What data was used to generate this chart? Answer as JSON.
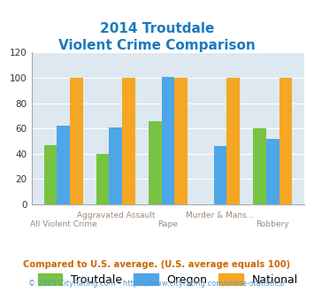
{
  "title_line1": "2014 Troutdale",
  "title_line2": "Violent Crime Comparison",
  "categories": [
    "All Violent Crime",
    "Aggravated Assault",
    "Rape",
    "Murder & Mans...",
    "Robbery"
  ],
  "troutdale": [
    47,
    40,
    66,
    0,
    60
  ],
  "oregon": [
    62,
    61,
    101,
    46,
    52
  ],
  "national": [
    100,
    100,
    100,
    100,
    100
  ],
  "colors": {
    "troutdale": "#76c442",
    "oregon": "#4da6e8",
    "national": "#f5a623"
  },
  "ylim": [
    0,
    120
  ],
  "yticks": [
    0,
    20,
    40,
    60,
    80,
    100,
    120
  ],
  "title_color": "#1a7abf",
  "xlabel_color": "#a08878",
  "legend_fontsize": 9,
  "footnote1": "Compared to U.S. average. (U.S. average equals 100)",
  "footnote2": "© 2025 CityRating.com - https://www.cityrating.com/crime-statistics/",
  "footnote1_color": "#cc6600",
  "footnote2_color": "#5599cc",
  "fig_bg_color": "#ffffff",
  "plot_bg_color": "#dde8f0"
}
